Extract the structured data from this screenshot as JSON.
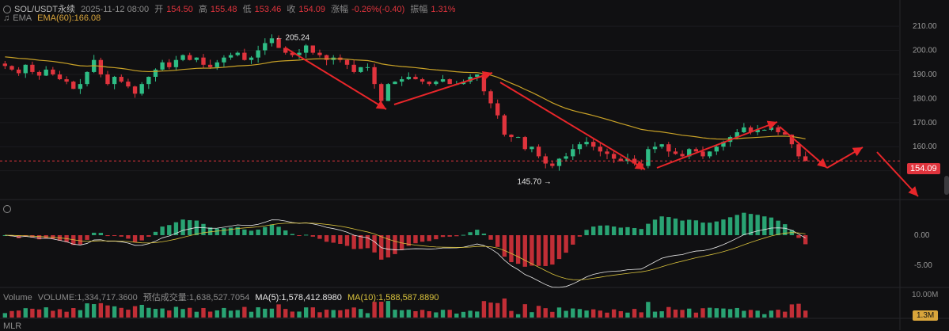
{
  "header": {
    "symbol": "SOL/USDT永续",
    "datetime": "2025-11-12 08:00",
    "open_label": "开",
    "open": "154.50",
    "high_label": "高",
    "high": "155.48",
    "low_label": "低",
    "low": "153.46",
    "close_label": "收",
    "close": "154.09",
    "change_label": "涨幅",
    "change": "-0.26%(-0.40)",
    "amp_label": "振幅",
    "amp": "1.31%"
  },
  "ema": {
    "label": "EMA",
    "value_label": "EMA(60):166.08"
  },
  "volume": {
    "label": "Volume",
    "volume_text": "VOLUME:1,334,717.3600",
    "est_text": "预估成交量:1,638,527.7054",
    "ma5_text": "MA(5):1,578,412.8980",
    "ma10_text": "MA(10):1,588,587.8890",
    "axis_top": "10.00M",
    "tag": "1.3M"
  },
  "mlr": {
    "label": "MLR"
  },
  "price_tag": "154.09",
  "annotations": {
    "high": "205.24",
    "low": "145.70"
  },
  "colors": {
    "up": "#2ebd85",
    "down": "#e0343d",
    "ema": "#c9a227",
    "arrow": "#e8262a",
    "dif": "#e8e8e8",
    "dea": "#d9c23c"
  },
  "chart_data": {
    "type": "candlestick",
    "price_axis": {
      "ticks": [
        210,
        200,
        190,
        180,
        170,
        160,
        150
      ],
      "range": [
        142,
        213
      ]
    },
    "macd_axis": {
      "ticks": [
        "0.00",
        "-5.00"
      ]
    },
    "close_prices": [
      193.5,
      192,
      190.5,
      194,
      191,
      189.5,
      192,
      190,
      188,
      187,
      184,
      186,
      191,
      196,
      190,
      186,
      189,
      187,
      185,
      182,
      186,
      189,
      192,
      195,
      193,
      196,
      198,
      196,
      197,
      194,
      193,
      195,
      197,
      198,
      199,
      196,
      197,
      200,
      203,
      205,
      201,
      199,
      198,
      199,
      202,
      199,
      198,
      196,
      197,
      196,
      194,
      191,
      193,
      193,
      186,
      179,
      186,
      187,
      188,
      189,
      188,
      187,
      186,
      187,
      188,
      186,
      186,
      187,
      189,
      190,
      183,
      178,
      173,
      165,
      164,
      164,
      159,
      160,
      156,
      153,
      152,
      155,
      156,
      159,
      161,
      162,
      160,
      158,
      157,
      155,
      154,
      155,
      153,
      152,
      159,
      160,
      161,
      158,
      157,
      156,
      159,
      158,
      156,
      158,
      160,
      162,
      164,
      166,
      168,
      166,
      167,
      167,
      168,
      166,
      165,
      161,
      156,
      154.09
    ],
    "annotations": [
      {
        "label": "205.24",
        "type": "high"
      },
      {
        "label": "145.70",
        "type": "low"
      }
    ]
  }
}
